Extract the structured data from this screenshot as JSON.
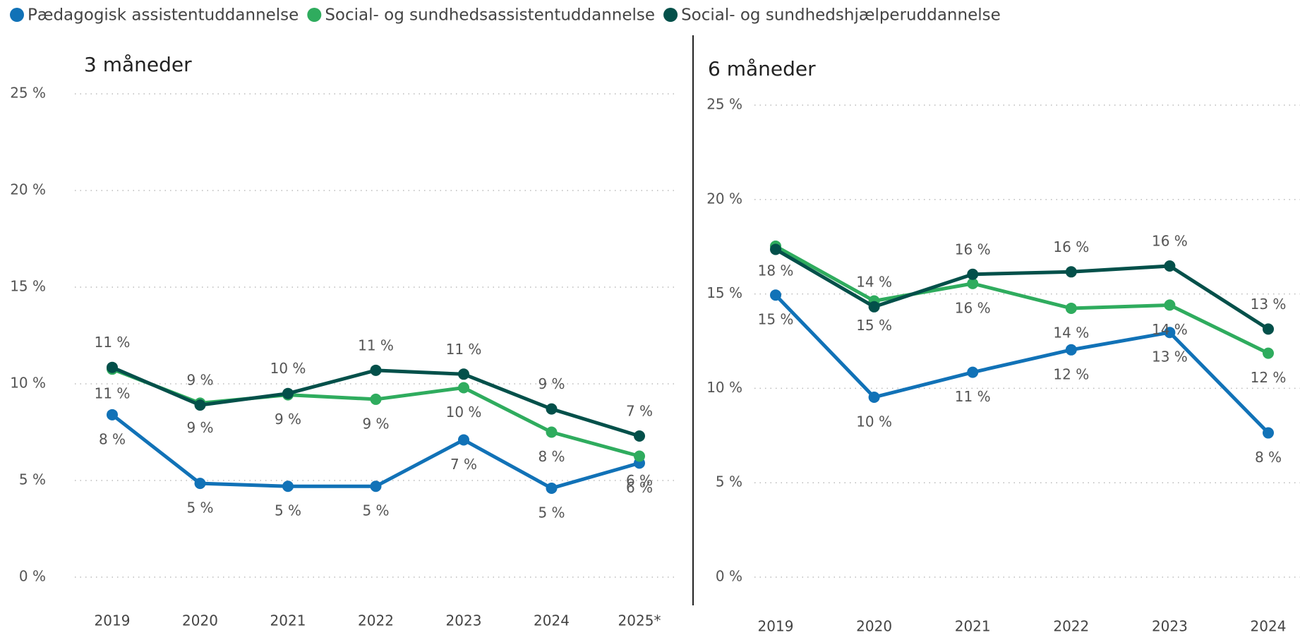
{
  "chart_data": [
    {
      "type": "line",
      "title": "3 måneder",
      "categories": [
        "2019",
        "2020",
        "2021",
        "2022",
        "2023",
        "2024",
        "2025*"
      ],
      "ylim": [
        0,
        25
      ],
      "yticks": [
        {
          "value": 0,
          "label": "0 %"
        },
        {
          "value": 5,
          "label": "5 %"
        },
        {
          "value": 10,
          "label": "10 %"
        },
        {
          "value": 15,
          "label": "15 %"
        },
        {
          "value": 20,
          "label": "20 %"
        },
        {
          "value": 25,
          "label": "25 %"
        }
      ],
      "grid": true,
      "series": [
        {
          "name": "Pædagogisk assistentuddannelse",
          "color": "#1172b7",
          "values": [
            8.4,
            4.85,
            4.7,
            4.7,
            7.1,
            4.6,
            5.9
          ],
          "value_labels": [
            "8 %",
            "5 %",
            "5 %",
            "5 %",
            "7 %",
            "5 %",
            "6 %"
          ]
        },
        {
          "name": "Social- og sundhedsassistentuddannelse",
          "color": "#2fac5e",
          "values": [
            10.76,
            9.0,
            9.43,
            9.2,
            9.8,
            7.5,
            6.26
          ],
          "value_labels": [
            "11 %",
            "9 %",
            "9 %",
            "9 %",
            "10 %",
            "8 %",
            "6 %"
          ]
        },
        {
          "name": "Social- og sundhedshjælperuddannelse",
          "color": "#03504a",
          "values": [
            10.85,
            8.9,
            9.5,
            10.7,
            10.5,
            8.7,
            7.3
          ],
          "value_labels": [
            "11 %",
            "9 %",
            "10 %",
            "11 %",
            "11 %",
            "9 %",
            "7 %"
          ]
        }
      ]
    },
    {
      "type": "line",
      "title": "6 måneder",
      "categories": [
        "2019",
        "2020",
        "2021",
        "2022",
        "2023",
        "2024"
      ],
      "ylim": [
        0,
        25
      ],
      "yticks": [
        {
          "value": 0,
          "label": "0 %"
        },
        {
          "value": 5,
          "label": "5 %"
        },
        {
          "value": 10,
          "label": "10 %"
        },
        {
          "value": 15,
          "label": "15 %"
        },
        {
          "value": 20,
          "label": "20 %"
        },
        {
          "value": 25,
          "label": "25 %"
        }
      ],
      "grid": true,
      "series": [
        {
          "color": "#1172b7",
          "values": [
            14.94,
            9.53,
            10.85,
            12.04,
            12.96,
            7.64
          ],
          "value_labels": [
            "15 %",
            "10 %",
            "11 %",
            "12 %",
            "13 %",
            "8 %"
          ]
        },
        {
          "color": "#2fac5e",
          "values": [
            17.53,
            14.63,
            15.55,
            14.24,
            14.41,
            11.86
          ],
          "value_labels": [
            "18 %",
            "15 %",
            "16 %",
            "14 %",
            "14 %",
            "12 %"
          ]
        },
        {
          "color": "#03504a",
          "values": [
            17.36,
            14.32,
            16.04,
            16.17,
            16.48,
            13.14
          ],
          "value_labels": [
            null,
            "14 %",
            "16 %",
            "16 %",
            "16 %",
            "13 %"
          ]
        }
      ]
    }
  ]
}
